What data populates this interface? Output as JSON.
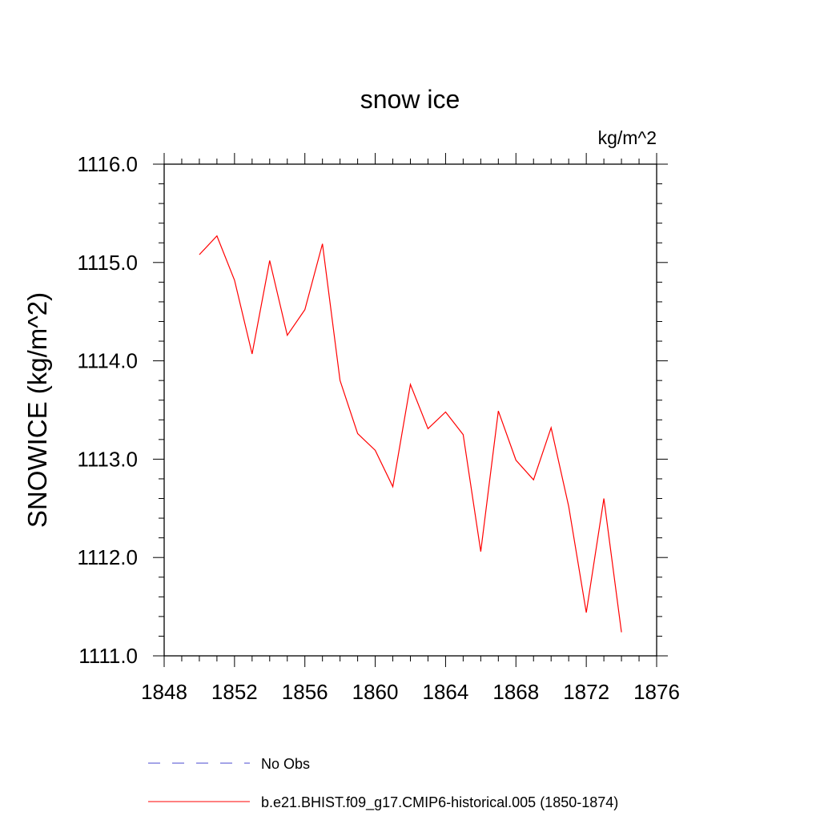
{
  "chart_data": {
    "type": "line",
    "title": "snow ice",
    "units": "kg/m^2",
    "ylabel": "SNOWICE  (kg/m^2)",
    "xlabel": "",
    "xlim": [
      1848,
      1876
    ],
    "ylim": [
      1111.0,
      1116.0
    ],
    "xticks": [
      "1848",
      "1852",
      "1856",
      "1860",
      "1864",
      "1868",
      "1872",
      "1876"
    ],
    "yticks": [
      "1111.0",
      "1112.0",
      "1113.0",
      "1114.0",
      "1115.0",
      "1116.0"
    ],
    "series": [
      {
        "name": "b.e21.BHIST.f09_g17.CMIP6-historical.005 (1850-1874)",
        "color": "#ff0000",
        "style": "solid",
        "x": [
          1850,
          1851,
          1852,
          1853,
          1854,
          1855,
          1856,
          1857,
          1858,
          1859,
          1860,
          1861,
          1862,
          1863,
          1864,
          1865,
          1866,
          1867,
          1868,
          1869,
          1870,
          1871,
          1872,
          1873,
          1874
        ],
        "values": [
          1115.08,
          1115.27,
          1114.82,
          1114.07,
          1115.02,
          1114.26,
          1114.52,
          1115.19,
          1113.8,
          1113.26,
          1113.09,
          1112.72,
          1113.76,
          1113.31,
          1113.48,
          1113.25,
          1112.06,
          1113.49,
          1112.99,
          1112.79,
          1113.32,
          1112.52,
          1111.44,
          1112.6,
          1111.24
        ]
      }
    ],
    "legend": {
      "placement": "bottom",
      "entries": [
        {
          "label": "No Obs",
          "color": "#4a4ad0",
          "style": "dashed"
        },
        {
          "label": "b.e21.BHIST.f09_g17.CMIP6-historical.005 (1850-1874)",
          "color": "#ff0000",
          "style": "solid"
        }
      ]
    }
  }
}
